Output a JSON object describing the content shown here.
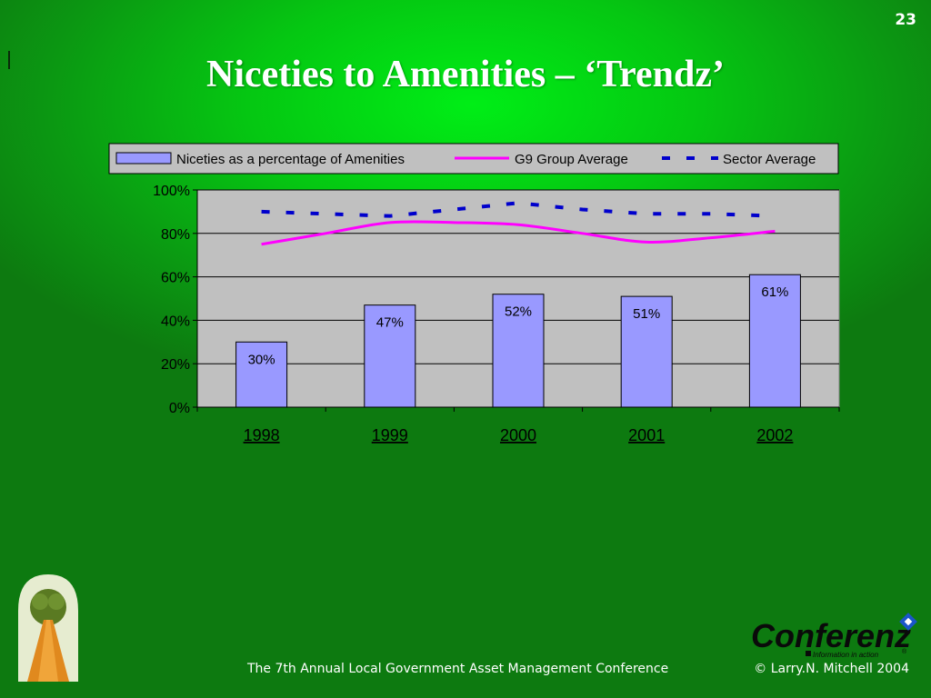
{
  "slide": {
    "number": "23",
    "title": "Niceties to Amenities – ‘Trendz’",
    "footer_left": "The 7th Annual Local Government Asset Management Conference",
    "footer_right": "© Larry.N. Mitchell 2004",
    "brand_name": "Conferenz",
    "brand_tagline": "Information in action",
    "brand_registered": "®"
  },
  "colors": {
    "bar_fill": "#9999ff",
    "g9_line": "#ff00ff",
    "sector_line": "#0000cc",
    "plot_background": "#c0c0c0",
    "legend_background": "#c0c0c0"
  },
  "chart_data": {
    "type": "bar",
    "categories": [
      "1998",
      "1999",
      "2000",
      "2001",
      "2002"
    ],
    "ylim": [
      0,
      100
    ],
    "yticks": [
      "0%",
      "20%",
      "40%",
      "60%",
      "80%",
      "100%"
    ],
    "gridlines": true,
    "legend_position": "top",
    "series": [
      {
        "name": "Niceties as a percentage of Amenities",
        "type": "bar",
        "values": [
          30,
          47,
          52,
          51,
          61
        ],
        "labels": [
          "30%",
          "47%",
          "52%",
          "51%",
          "61%"
        ]
      },
      {
        "name": "G9 Group Average",
        "type": "line",
        "style": "solid",
        "x": [
          1998,
          1998.5,
          1999,
          1999.5,
          2000,
          2000.5,
          2001,
          2001.5,
          2002
        ],
        "values": [
          75,
          80,
          85,
          85,
          84,
          80,
          76,
          78,
          81
        ]
      },
      {
        "name": "Sector Average",
        "type": "line",
        "style": "dashed",
        "x": [
          1998,
          1998.5,
          1999,
          1999.5,
          2000,
          2000.5,
          2001,
          2001.5,
          2002
        ],
        "values": [
          90,
          89,
          88,
          91,
          94,
          91,
          89,
          89,
          88
        ]
      }
    ]
  }
}
